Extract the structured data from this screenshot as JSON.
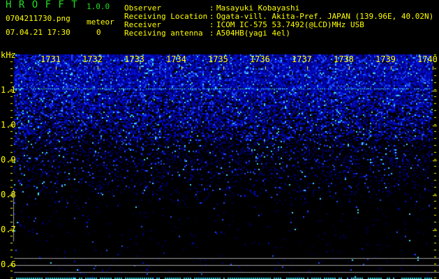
{
  "app": {
    "title": "H R O F F T",
    "version": "1.0.0"
  },
  "file": {
    "name": "0704211730.png",
    "datetime": "07.04.21 17:30"
  },
  "meteor": {
    "label": "meteor",
    "count": "0"
  },
  "info": [
    {
      "label": "Observer",
      "value": "Masayuki Kobayashi"
    },
    {
      "label": "Receiving Location",
      "value": "Ogata-vill. Akita-Pref. JAPAN (139.96E, 40.02N)"
    },
    {
      "label": "Receiver",
      "value": "ICOM IC-575 53.7492(@LCD)MHz USB"
    },
    {
      "label": "Receiving antenna",
      "value": "A504HB(yagi 4el)"
    }
  ],
  "spectrogram": {
    "y_unit": "kHz",
    "y_ticks": [
      "1.1",
      "1.0",
      "0.9",
      "0.8",
      "0.7",
      "0.6"
    ],
    "x_ticks": [
      "1731",
      "1732",
      "1733",
      "1734",
      "1735",
      "1736",
      "1737",
      "1738",
      "1739",
      "1740"
    ],
    "colors": {
      "label": "#ffff00",
      "noise": "#0000ff",
      "highlight": "#00ffff",
      "line": "#a0a0a0"
    }
  }
}
